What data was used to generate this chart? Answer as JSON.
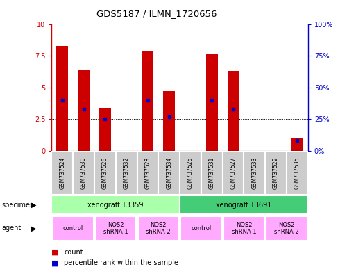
{
  "title": "GDS5187 / ILMN_1720656",
  "samples": [
    "GSM737524",
    "GSM737530",
    "GSM737526",
    "GSM737532",
    "GSM737528",
    "GSM737534",
    "GSM737525",
    "GSM737531",
    "GSM737527",
    "GSM737533",
    "GSM737529",
    "GSM737535"
  ],
  "counts": [
    8.3,
    6.4,
    3.4,
    0.0,
    7.9,
    4.7,
    0.0,
    7.7,
    6.3,
    0.0,
    0.0,
    1.0
  ],
  "percentile_vals": [
    4.0,
    3.3,
    2.5,
    0.0,
    4.0,
    2.7,
    0.0,
    4.0,
    3.3,
    0.0,
    0.0,
    0.8
  ],
  "has_blue": [
    true,
    true,
    true,
    false,
    true,
    true,
    false,
    true,
    true,
    false,
    false,
    true
  ],
  "bar_color": "#cc0000",
  "blue_color": "#0000cc",
  "ylim": [
    0,
    10
  ],
  "yticks_left": [
    0,
    2.5,
    5,
    7.5,
    10
  ],
  "ytick_labels_left": [
    "0",
    "2.5",
    "5",
    "7.5",
    "10"
  ],
  "ytick_labels_right": [
    "0%",
    "25%",
    "50%",
    "75%",
    "100%"
  ],
  "left_tick_color": "#cc0000",
  "right_tick_color": "#0000cc",
  "specimen_groups": [
    {
      "label": "xenograft T3359",
      "start": 0,
      "end": 6,
      "color": "#aaffaa"
    },
    {
      "label": "xenograft T3691",
      "start": 6,
      "end": 12,
      "color": "#44cc77"
    }
  ],
  "agent_groups": [
    {
      "label": "control",
      "start": 0,
      "end": 2,
      "color": "#ffaaff"
    },
    {
      "label": "NOS2\nshRNA 1",
      "start": 2,
      "end": 4,
      "color": "#ffaaff"
    },
    {
      "label": "NOS2\nshRNA 2",
      "start": 4,
      "end": 6,
      "color": "#ffaaff"
    },
    {
      "label": "control",
      "start": 6,
      "end": 8,
      "color": "#ffaaff"
    },
    {
      "label": "NOS2\nshRNA 1",
      "start": 8,
      "end": 10,
      "color": "#ffaaff"
    },
    {
      "label": "NOS2\nshRNA 2",
      "start": 10,
      "end": 12,
      "color": "#ffaaff"
    }
  ],
  "bar_width": 0.55,
  "bg_color": "#ffffff",
  "grid_color": "#000000",
  "label_row1": "specimen",
  "label_row2": "agent",
  "legend_count_label": "count",
  "legend_pct_label": "percentile rank within the sample",
  "cell_bg": "#cccccc",
  "cell_sep_color": "#ffffff"
}
